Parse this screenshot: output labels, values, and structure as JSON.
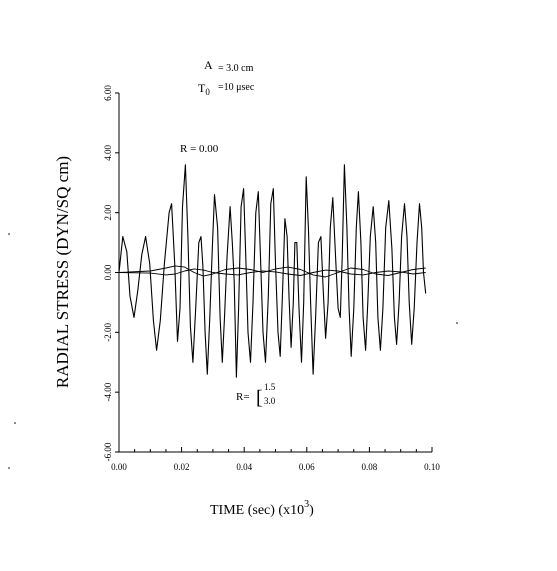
{
  "chart_data": {
    "type": "line",
    "title": "",
    "xlabel": "TIME (sec)   (x10",
    "xlabel_exp": "3",
    "xlabel_close": ")",
    "ylabel": "RADIAL STRESS (DYN/SQ cm)",
    "xlim": [
      0.0,
      0.1
    ],
    "ylim": [
      -6.0,
      6.0
    ],
    "x_ticks": [
      "0.00",
      "0.02",
      "0.04",
      "0.06",
      "0.08",
      "0.10"
    ],
    "y_ticks": [
      "-6.00",
      "-4.00",
      "-2.00",
      "0.00",
      "2.00",
      "4.00",
      "6.00"
    ],
    "grid": false,
    "legend": "none",
    "annotations": {
      "param_a": "A",
      "param_a_value": "= 3.0 cm",
      "param_t": "T",
      "param_t_sub": "0",
      "param_t_value": "=10 μsec",
      "r_center": "R = 0.00",
      "r_prefix": "R=",
      "r_bracket": "[",
      "r_val1": "1.5",
      "r_val2": "3.0"
    },
    "series": [
      {
        "values": [
          [
            0.0,
            0.0
          ],
          [
            0.0012,
            1.2
          ],
          [
            0.0025,
            0.7
          ],
          [
            0.0035,
            -0.8
          ],
          [
            0.0048,
            -1.5
          ],
          [
            0.006,
            -0.6
          ],
          [
            0.0073,
            0.6
          ],
          [
            0.0085,
            1.2
          ],
          [
            0.0098,
            0.3
          ],
          [
            0.011,
            -1.6
          ],
          [
            0.012,
            -2.6
          ],
          [
            0.0132,
            -1.6
          ],
          [
            0.0145,
            0.3
          ],
          [
            0.016,
            2.0
          ],
          [
            0.0168,
            2.3
          ],
          [
            0.0178,
            0.3
          ],
          [
            0.0187,
            -2.3
          ],
          [
            0.0195,
            -1.2
          ],
          [
            0.0203,
            2.2
          ],
          [
            0.0212,
            3.6
          ],
          [
            0.022,
            1.2
          ],
          [
            0.0228,
            -1.8
          ],
          [
            0.0236,
            -3.0
          ],
          [
            0.0245,
            -1.2
          ],
          [
            0.0255,
            1.0
          ],
          [
            0.0262,
            1.2
          ],
          [
            0.0268,
            0.2
          ],
          [
            0.0275,
            -2.0
          ],
          [
            0.0282,
            -3.4
          ],
          [
            0.029,
            -1.5
          ],
          [
            0.0298,
            0.8
          ],
          [
            0.0305,
            2.6
          ],
          [
            0.0315,
            1.5
          ],
          [
            0.0323,
            -1.5
          ],
          [
            0.033,
            -3.0
          ],
          [
            0.0337,
            -1.5
          ],
          [
            0.0345,
            0.5
          ],
          [
            0.0355,
            2.2
          ],
          [
            0.0362,
            1.0
          ],
          [
            0.0368,
            -0.3
          ],
          [
            0.0375,
            -3.5
          ],
          [
            0.0382,
            -1.2
          ],
          [
            0.039,
            2.2
          ],
          [
            0.0398,
            2.8
          ],
          [
            0.0405,
            0.5
          ],
          [
            0.0412,
            -2.0
          ],
          [
            0.042,
            -3.0
          ],
          [
            0.0428,
            -1.0
          ],
          [
            0.0437,
            2.0
          ],
          [
            0.0445,
            2.7
          ],
          [
            0.0452,
            0.5
          ],
          [
            0.046,
            -2.0
          ],
          [
            0.0468,
            -3.0
          ],
          [
            0.0477,
            -0.8
          ],
          [
            0.0485,
            2.3
          ],
          [
            0.0493,
            2.8
          ],
          [
            0.05,
            0.3
          ],
          [
            0.0508,
            -2.0
          ],
          [
            0.0515,
            -2.8
          ],
          [
            0.0523,
            -0.5
          ],
          [
            0.053,
            1.8
          ],
          [
            0.0537,
            1.2
          ],
          [
            0.0543,
            -0.8
          ],
          [
            0.055,
            -2.5
          ],
          [
            0.0557,
            -1.0
          ],
          [
            0.0562,
            1.0
          ],
          [
            0.0568,
            1.0
          ],
          [
            0.0575,
            -1.2
          ],
          [
            0.0583,
            -3.0
          ],
          [
            0.059,
            -1.0
          ],
          [
            0.0598,
            3.2
          ],
          [
            0.0605,
            1.5
          ],
          [
            0.0612,
            -1.0
          ],
          [
            0.062,
            -3.4
          ],
          [
            0.0628,
            -1.5
          ],
          [
            0.0637,
            1.0
          ],
          [
            0.0645,
            1.2
          ],
          [
            0.0652,
            -0.5
          ],
          [
            0.066,
            -2.2
          ],
          [
            0.0668,
            -1.0
          ],
          [
            0.0675,
            1.5
          ],
          [
            0.0683,
            2.5
          ],
          [
            0.0692,
            0.5
          ],
          [
            0.07,
            -1.2
          ],
          [
            0.0707,
            -1.5
          ],
          [
            0.0713,
            0.5
          ],
          [
            0.072,
            3.6
          ],
          [
            0.0728,
            1.5
          ],
          [
            0.0735,
            -1.2
          ],
          [
            0.0742,
            -2.8
          ],
          [
            0.075,
            -1.2
          ],
          [
            0.0758,
            1.5
          ],
          [
            0.0765,
            2.7
          ],
          [
            0.0773,
            1.0
          ],
          [
            0.078,
            -1.5
          ],
          [
            0.0788,
            -2.6
          ],
          [
            0.0795,
            -1.0
          ],
          [
            0.0803,
            1.2
          ],
          [
            0.0812,
            2.2
          ],
          [
            0.082,
            1.0
          ],
          [
            0.0827,
            -1.5
          ],
          [
            0.0835,
            -2.6
          ],
          [
            0.0843,
            -1.2
          ],
          [
            0.0852,
            1.5
          ],
          [
            0.0862,
            2.4
          ],
          [
            0.0872,
            0.8
          ],
          [
            0.088,
            -1.5
          ],
          [
            0.0887,
            -2.4
          ],
          [
            0.0895,
            -1.0
          ],
          [
            0.0903,
            1.2
          ],
          [
            0.0912,
            2.3
          ],
          [
            0.092,
            1.2
          ],
          [
            0.0927,
            -1.0
          ],
          [
            0.0935,
            -2.4
          ],
          [
            0.0943,
            -1.2
          ],
          [
            0.0952,
            1.0
          ],
          [
            0.096,
            2.3
          ],
          [
            0.0967,
            1.5
          ],
          [
            0.0973,
            0.0
          ],
          [
            0.098,
            -0.7
          ]
        ]
      },
      {
        "values": [
          [
            0.0,
            0.0
          ],
          [
            0.01,
            0.05
          ],
          [
            0.015,
            0.15
          ],
          [
            0.018,
            0.22
          ],
          [
            0.021,
            0.18
          ],
          [
            0.024,
            0.0
          ],
          [
            0.027,
            -0.12
          ],
          [
            0.03,
            -0.05
          ],
          [
            0.034,
            0.1
          ],
          [
            0.038,
            0.15
          ],
          [
            0.042,
            0.1
          ],
          [
            0.046,
            0.0
          ],
          [
            0.05,
            0.12
          ],
          [
            0.054,
            0.18
          ],
          [
            0.058,
            0.1
          ],
          [
            0.062,
            -0.08
          ],
          [
            0.066,
            -0.15
          ],
          [
            0.07,
            0.0
          ],
          [
            0.074,
            0.15
          ],
          [
            0.078,
            0.1
          ],
          [
            0.082,
            -0.05
          ],
          [
            0.086,
            -0.1
          ],
          [
            0.09,
            0.0
          ],
          [
            0.094,
            0.1
          ],
          [
            0.098,
            0.15
          ]
        ]
      },
      {
        "values": [
          [
            0.0,
            0.0
          ],
          [
            0.01,
            -0.02
          ],
          [
            0.015,
            -0.08
          ],
          [
            0.018,
            -0.05
          ],
          [
            0.021,
            0.05
          ],
          [
            0.024,
            0.12
          ],
          [
            0.027,
            0.08
          ],
          [
            0.03,
            0.0
          ],
          [
            0.034,
            -0.05
          ],
          [
            0.038,
            -0.08
          ],
          [
            0.042,
            0.0
          ],
          [
            0.046,
            0.05
          ],
          [
            0.05,
            0.02
          ],
          [
            0.054,
            -0.05
          ],
          [
            0.058,
            -0.1
          ],
          [
            0.062,
            0.0
          ],
          [
            0.066,
            0.08
          ],
          [
            0.07,
            0.05
          ],
          [
            0.074,
            -0.05
          ],
          [
            0.078,
            -0.08
          ],
          [
            0.082,
            0.0
          ],
          [
            0.086,
            0.05
          ],
          [
            0.09,
            0.02
          ],
          [
            0.094,
            -0.05
          ],
          [
            0.098,
            0.0
          ]
        ]
      }
    ]
  }
}
